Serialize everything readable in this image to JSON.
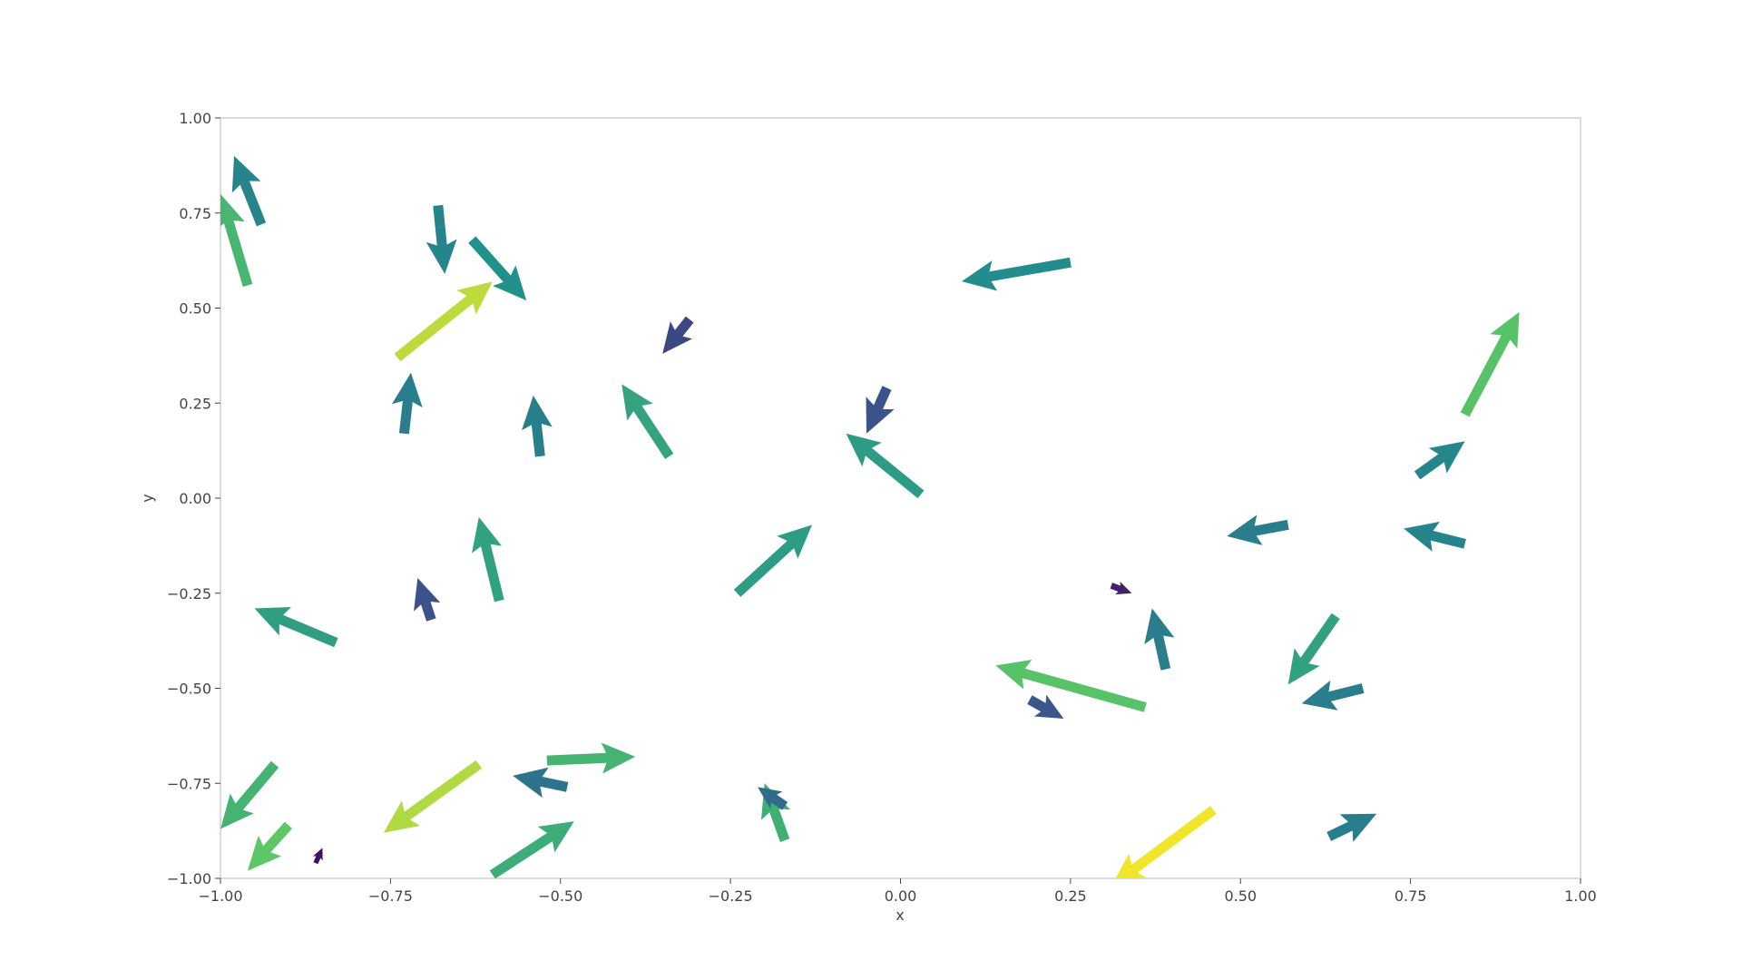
{
  "chart_data": {
    "type": "quiver",
    "xlabel": "x",
    "ylabel": "y",
    "xlim": [
      -1.0,
      1.0
    ],
    "ylim": [
      -1.0,
      1.0
    ],
    "grid": false,
    "xticks": [
      "−1.00",
      "−0.75",
      "−0.50",
      "−0.25",
      "0.00",
      "0.25",
      "0.50",
      "0.75",
      "1.00"
    ],
    "yticks": [
      "−1.00",
      "−0.75",
      "−0.50",
      "−0.25",
      "0.00",
      "0.25",
      "0.50",
      "0.75",
      "1.00"
    ],
    "colormap": "viridis",
    "arrows": [
      {
        "x": -0.96,
        "y": 0.56,
        "u": -0.04,
        "v": 0.24,
        "c": 0.66
      },
      {
        "x": -0.94,
        "y": 0.72,
        "u": -0.04,
        "v": 0.18,
        "c": 0.45
      },
      {
        "x": -0.68,
        "y": 0.77,
        "u": 0.01,
        "v": -0.18,
        "c": 0.45
      },
      {
        "x": -0.63,
        "y": 0.68,
        "u": 0.08,
        "v": -0.16,
        "c": 0.5
      },
      {
        "x": -0.74,
        "y": 0.37,
        "u": 0.14,
        "v": 0.2,
        "c": 0.9
      },
      {
        "x": -0.73,
        "y": 0.17,
        "u": 0.01,
        "v": 0.16,
        "c": 0.42
      },
      {
        "x": -0.53,
        "y": 0.11,
        "u": -0.01,
        "v": 0.16,
        "c": 0.43
      },
      {
        "x": -0.34,
        "y": 0.11,
        "u": -0.07,
        "v": 0.19,
        "c": 0.58
      },
      {
        "x": -0.31,
        "y": 0.47,
        "u": -0.04,
        "v": -0.09,
        "c": 0.22
      },
      {
        "x": 0.03,
        "y": 0.01,
        "u": -0.11,
        "v": 0.16,
        "c": 0.55
      },
      {
        "x": -0.02,
        "y": 0.29,
        "u": -0.03,
        "v": -0.12,
        "c": 0.25
      },
      {
        "x": 0.25,
        "y": 0.62,
        "u": -0.16,
        "v": -0.05,
        "c": 0.48
      },
      {
        "x": -0.59,
        "y": -0.27,
        "u": -0.03,
        "v": 0.22,
        "c": 0.57
      },
      {
        "x": -0.69,
        "y": -0.32,
        "u": -0.02,
        "v": 0.11,
        "c": 0.25
      },
      {
        "x": -0.83,
        "y": -0.38,
        "u": -0.12,
        "v": 0.09,
        "c": 0.56
      },
      {
        "x": -0.24,
        "y": -0.25,
        "u": 0.11,
        "v": 0.18,
        "c": 0.55
      },
      {
        "x": -0.62,
        "y": -0.7,
        "u": -0.14,
        "v": -0.18,
        "c": 0.88
      },
      {
        "x": -0.52,
        "y": -0.69,
        "u": 0.13,
        "v": 0.01,
        "c": 0.65
      },
      {
        "x": -0.49,
        "y": -0.76,
        "u": -0.08,
        "v": 0.03,
        "c": 0.38
      },
      {
        "x": -0.92,
        "y": -0.7,
        "u": -0.08,
        "v": -0.17,
        "c": 0.65
      },
      {
        "x": -0.9,
        "y": -0.86,
        "u": -0.06,
        "v": -0.12,
        "c": 0.74
      },
      {
        "x": -0.86,
        "y": -0.96,
        "u": 0.01,
        "v": 0.04,
        "c": 0.05
      },
      {
        "x": -0.6,
        "y": -0.99,
        "u": 0.12,
        "v": 0.14,
        "c": 0.62
      },
      {
        "x": -0.17,
        "y": -0.9,
        "u": -0.03,
        "v": 0.15,
        "c": 0.63
      },
      {
        "x": -0.17,
        "y": -0.81,
        "u": -0.04,
        "v": 0.05,
        "c": 0.35
      },
      {
        "x": 0.36,
        "y": -0.55,
        "u": -0.22,
        "v": 0.11,
        "c": 0.72
      },
      {
        "x": 0.19,
        "y": -0.53,
        "u": 0.05,
        "v": -0.05,
        "c": 0.27
      },
      {
        "x": 0.39,
        "y": -0.45,
        "u": -0.02,
        "v": 0.16,
        "c": 0.42
      },
      {
        "x": 0.31,
        "y": -0.23,
        "u": 0.03,
        "v": -0.02,
        "c": 0.1
      },
      {
        "x": 0.46,
        "y": -0.82,
        "u": -0.15,
        "v": -0.2,
        "c": 0.98
      },
      {
        "x": 0.57,
        "y": -0.07,
        "u": -0.09,
        "v": -0.03,
        "c": 0.42
      },
      {
        "x": 0.64,
        "y": -0.31,
        "u": -0.07,
        "v": -0.18,
        "c": 0.57
      },
      {
        "x": 0.68,
        "y": -0.5,
        "u": -0.09,
        "v": -0.04,
        "c": 0.42
      },
      {
        "x": 0.63,
        "y": -0.89,
        "u": 0.07,
        "v": 0.06,
        "c": 0.43
      },
      {
        "x": 0.76,
        "y": 0.06,
        "u": 0.07,
        "v": 0.09,
        "c": 0.46
      },
      {
        "x": 0.83,
        "y": -0.12,
        "u": -0.09,
        "v": 0.04,
        "c": 0.45
      },
      {
        "x": 0.83,
        "y": 0.22,
        "u": 0.08,
        "v": 0.27,
        "c": 0.72
      }
    ]
  }
}
